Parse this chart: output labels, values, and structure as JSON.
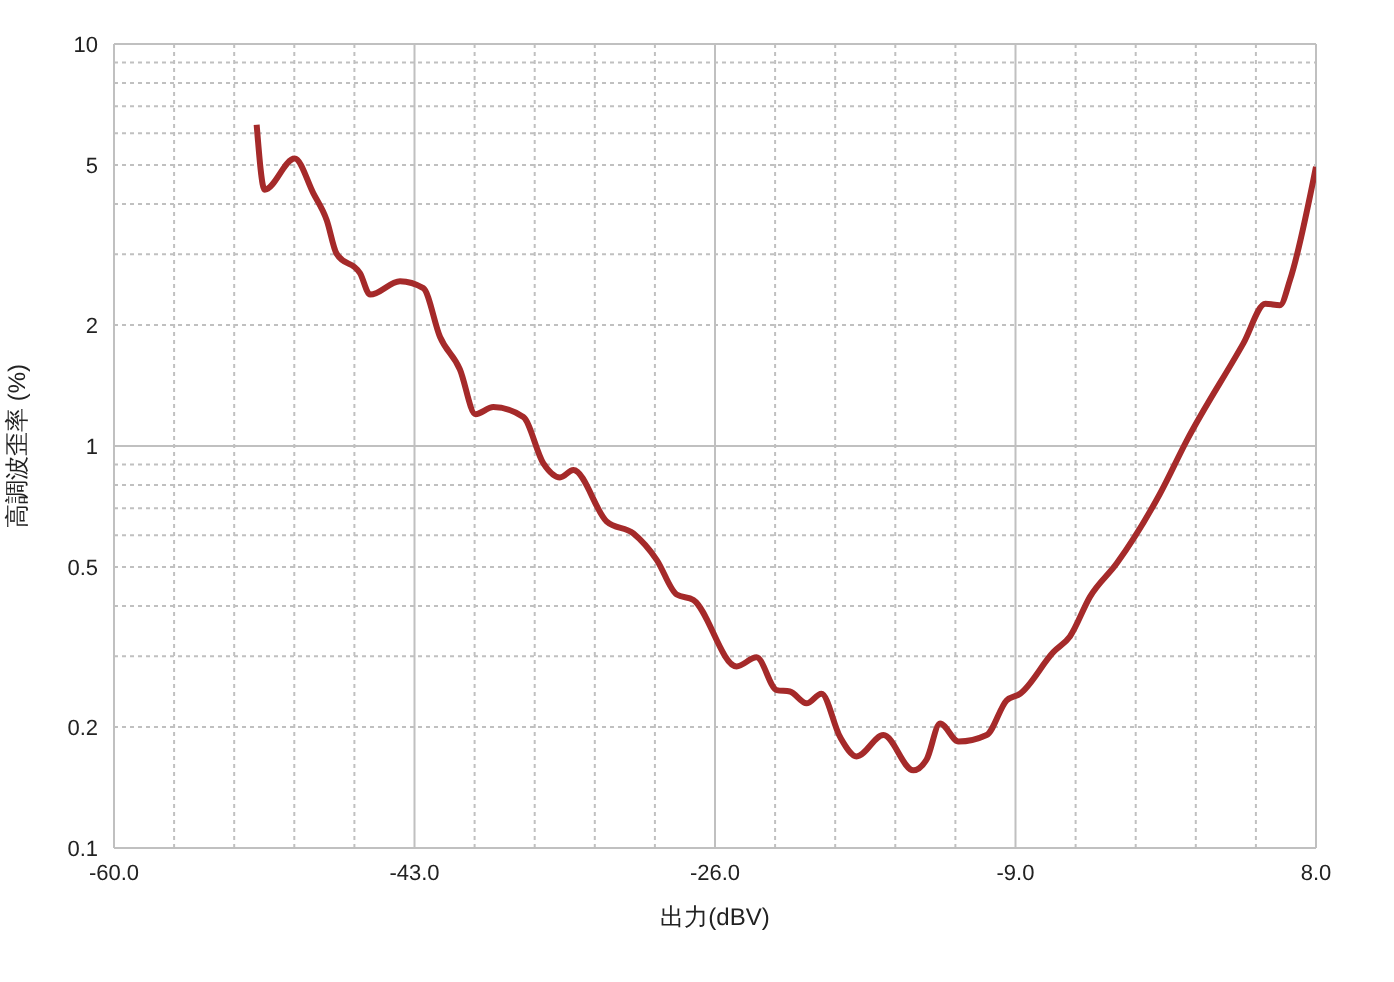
{
  "chart_data": {
    "type": "line",
    "xlabel": "出力(dBV)",
    "ylabel": "高調波歪率 (%)",
    "log": "y",
    "grid": true,
    "legend": false,
    "marker": "none",
    "line_style": "solid",
    "xlim": [
      -60,
      8
    ],
    "ylim": [
      0.1,
      10
    ],
    "xticks": [
      {
        "value": -60,
        "label": "-60.0"
      },
      {
        "value": -56.6,
        "label": null
      },
      {
        "value": -53.2,
        "label": null
      },
      {
        "value": -49.8,
        "label": null
      },
      {
        "value": -46.4,
        "label": null
      },
      {
        "value": -43,
        "label": "-43.0"
      },
      {
        "value": -39.6,
        "label": null
      },
      {
        "value": -36.2,
        "label": null
      },
      {
        "value": -32.8,
        "label": null
      },
      {
        "value": -29.4,
        "label": null
      },
      {
        "value": -26,
        "label": "-26.0"
      },
      {
        "value": -22.6,
        "label": null
      },
      {
        "value": -19.2,
        "label": null
      },
      {
        "value": -15.8,
        "label": null
      },
      {
        "value": -12.4,
        "label": null
      },
      {
        "value": -9,
        "label": "-9.0"
      },
      {
        "value": -5.6,
        "label": null
      },
      {
        "value": -2.2,
        "label": null
      },
      {
        "value": 1.2,
        "label": null
      },
      {
        "value": 4.6,
        "label": null
      },
      {
        "value": 8,
        "label": "8.0"
      }
    ],
    "yticks": [
      0.1,
      0.2,
      {
        "value": 0.3,
        "label": null
      },
      {
        "value": 0.4,
        "label": null
      },
      0.5,
      {
        "value": 0.6,
        "label": null
      },
      {
        "value": 0.7,
        "label": null
      },
      {
        "value": 0.8,
        "label": null
      },
      {
        "value": 0.9,
        "label": null
      },
      1,
      2,
      {
        "value": 3,
        "label": null
      },
      {
        "value": 4,
        "label": null
      },
      5,
      {
        "value": 6,
        "label": null
      },
      {
        "value": 7,
        "label": null
      },
      {
        "value": 8,
        "label": null
      },
      {
        "value": 9,
        "label": null
      },
      10
    ],
    "series": [
      {
        "color": "#a52a2a",
        "x": [
          -51.93,
          -51.48,
          -49.78,
          -48.72,
          -47.97,
          -47.41,
          -46.08,
          -45.51,
          -43.82,
          -42.5,
          -41.56,
          -40.43,
          -39.55,
          -38.54,
          -36.84,
          -35.71,
          -34.77,
          -34.01,
          -32.13,
          -30.62,
          -29.3,
          -28.17,
          -27.22,
          -24.78,
          -23.65,
          -22.51,
          -21.76,
          -20.82,
          -19.98,
          -18.93,
          -17.99,
          -16.47,
          -14.78,
          -14.03,
          -13.27,
          -12.22,
          -10.63,
          -9.5,
          -8.74,
          -6.86,
          -5.92,
          -4.78,
          -3.28,
          -0.82,
          0.68,
          3.89,
          5.14,
          5.96,
          6.53,
          8
        ],
        "values": [
          6.3,
          4.34,
          5.19,
          4.25,
          3.65,
          3.01,
          2.69,
          2.38,
          2.57,
          2.47,
          1.87,
          1.55,
          1.2,
          1.25,
          1.18,
          0.905,
          0.835,
          0.871,
          0.649,
          0.606,
          0.521,
          0.427,
          0.414,
          0.283,
          0.298,
          0.247,
          0.245,
          0.229,
          0.242,
          0.189,
          0.169,
          0.191,
          0.156,
          0.166,
          0.204,
          0.184,
          0.191,
          0.233,
          0.242,
          0.307,
          0.336,
          0.422,
          0.51,
          0.762,
          1.03,
          1.8,
          2.26,
          2.24,
          2.59,
          4.95
        ]
      }
    ]
  }
}
